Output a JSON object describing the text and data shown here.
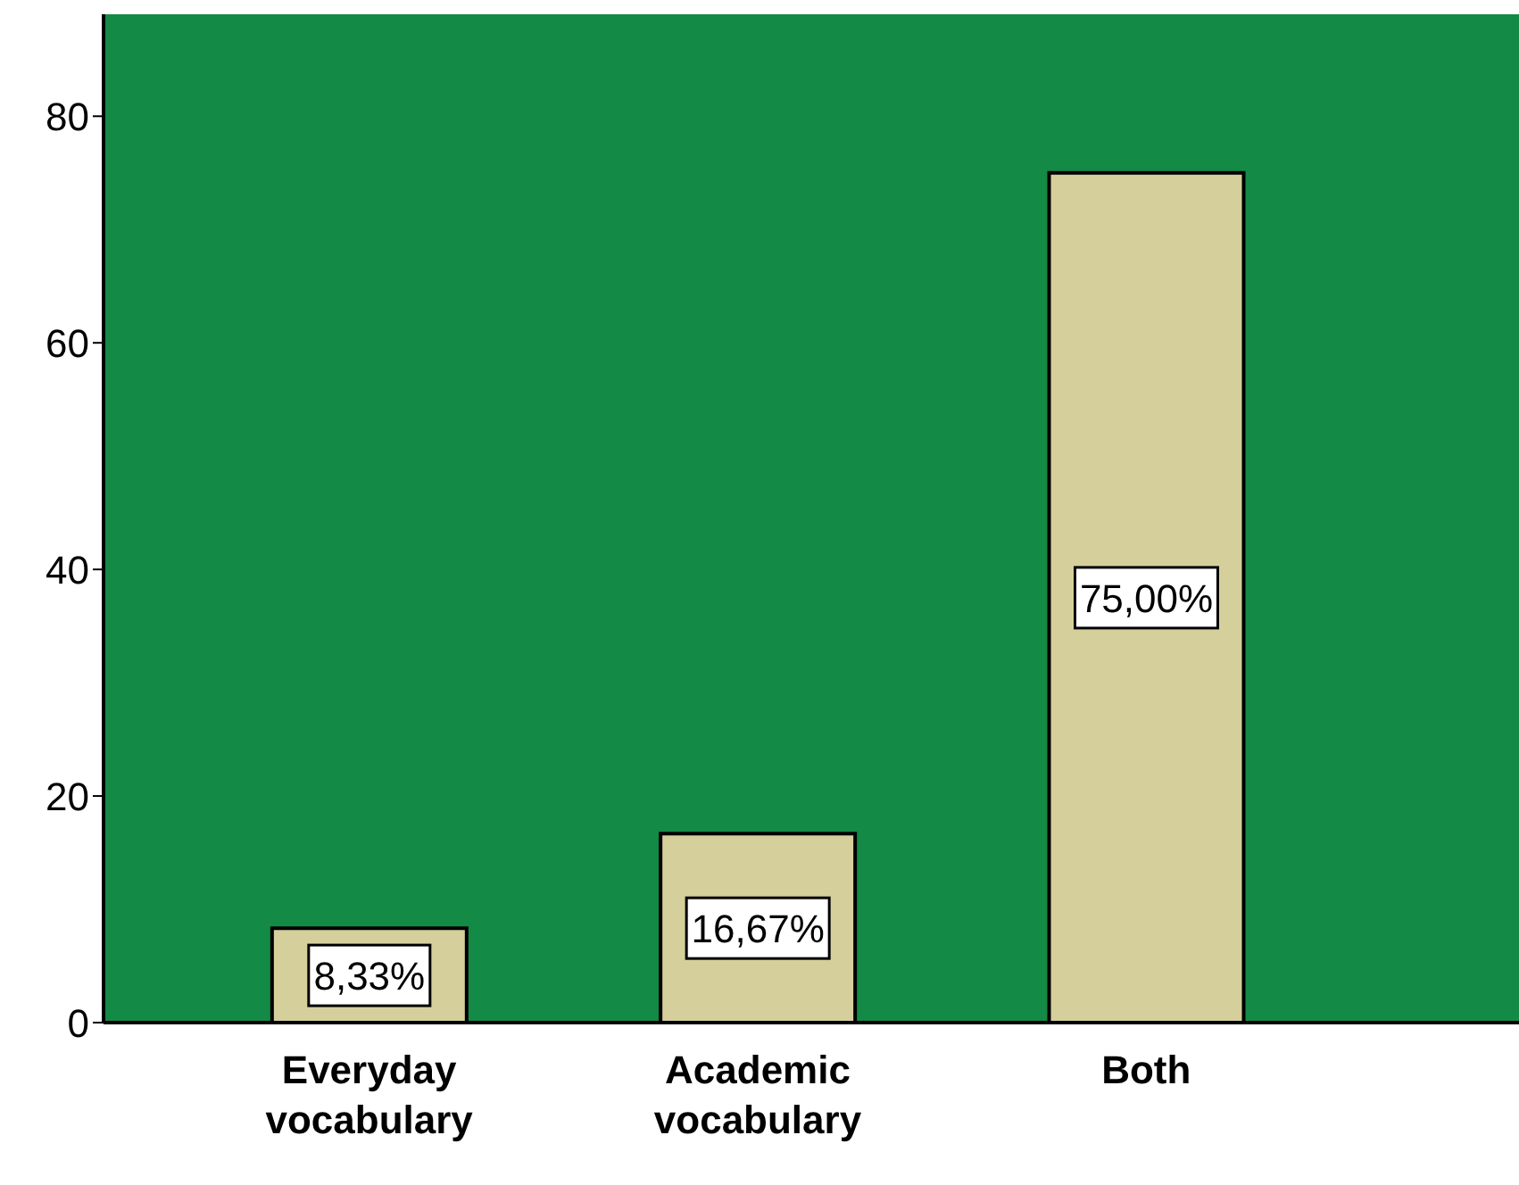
{
  "chart_data": {
    "type": "bar",
    "categories": [
      "Everyday vocabulary",
      "Academic vocabulary",
      "Both"
    ],
    "values": [
      8.33,
      16.67,
      75
    ],
    "color": "#d5cf9c",
    "value_labels": [
      "8,33%",
      "16,67%",
      "75,00%"
    ],
    "ylim": [
      0,
      89
    ],
    "yticks": [
      0,
      20,
      40,
      60,
      80
    ],
    "grid": false
  }
}
